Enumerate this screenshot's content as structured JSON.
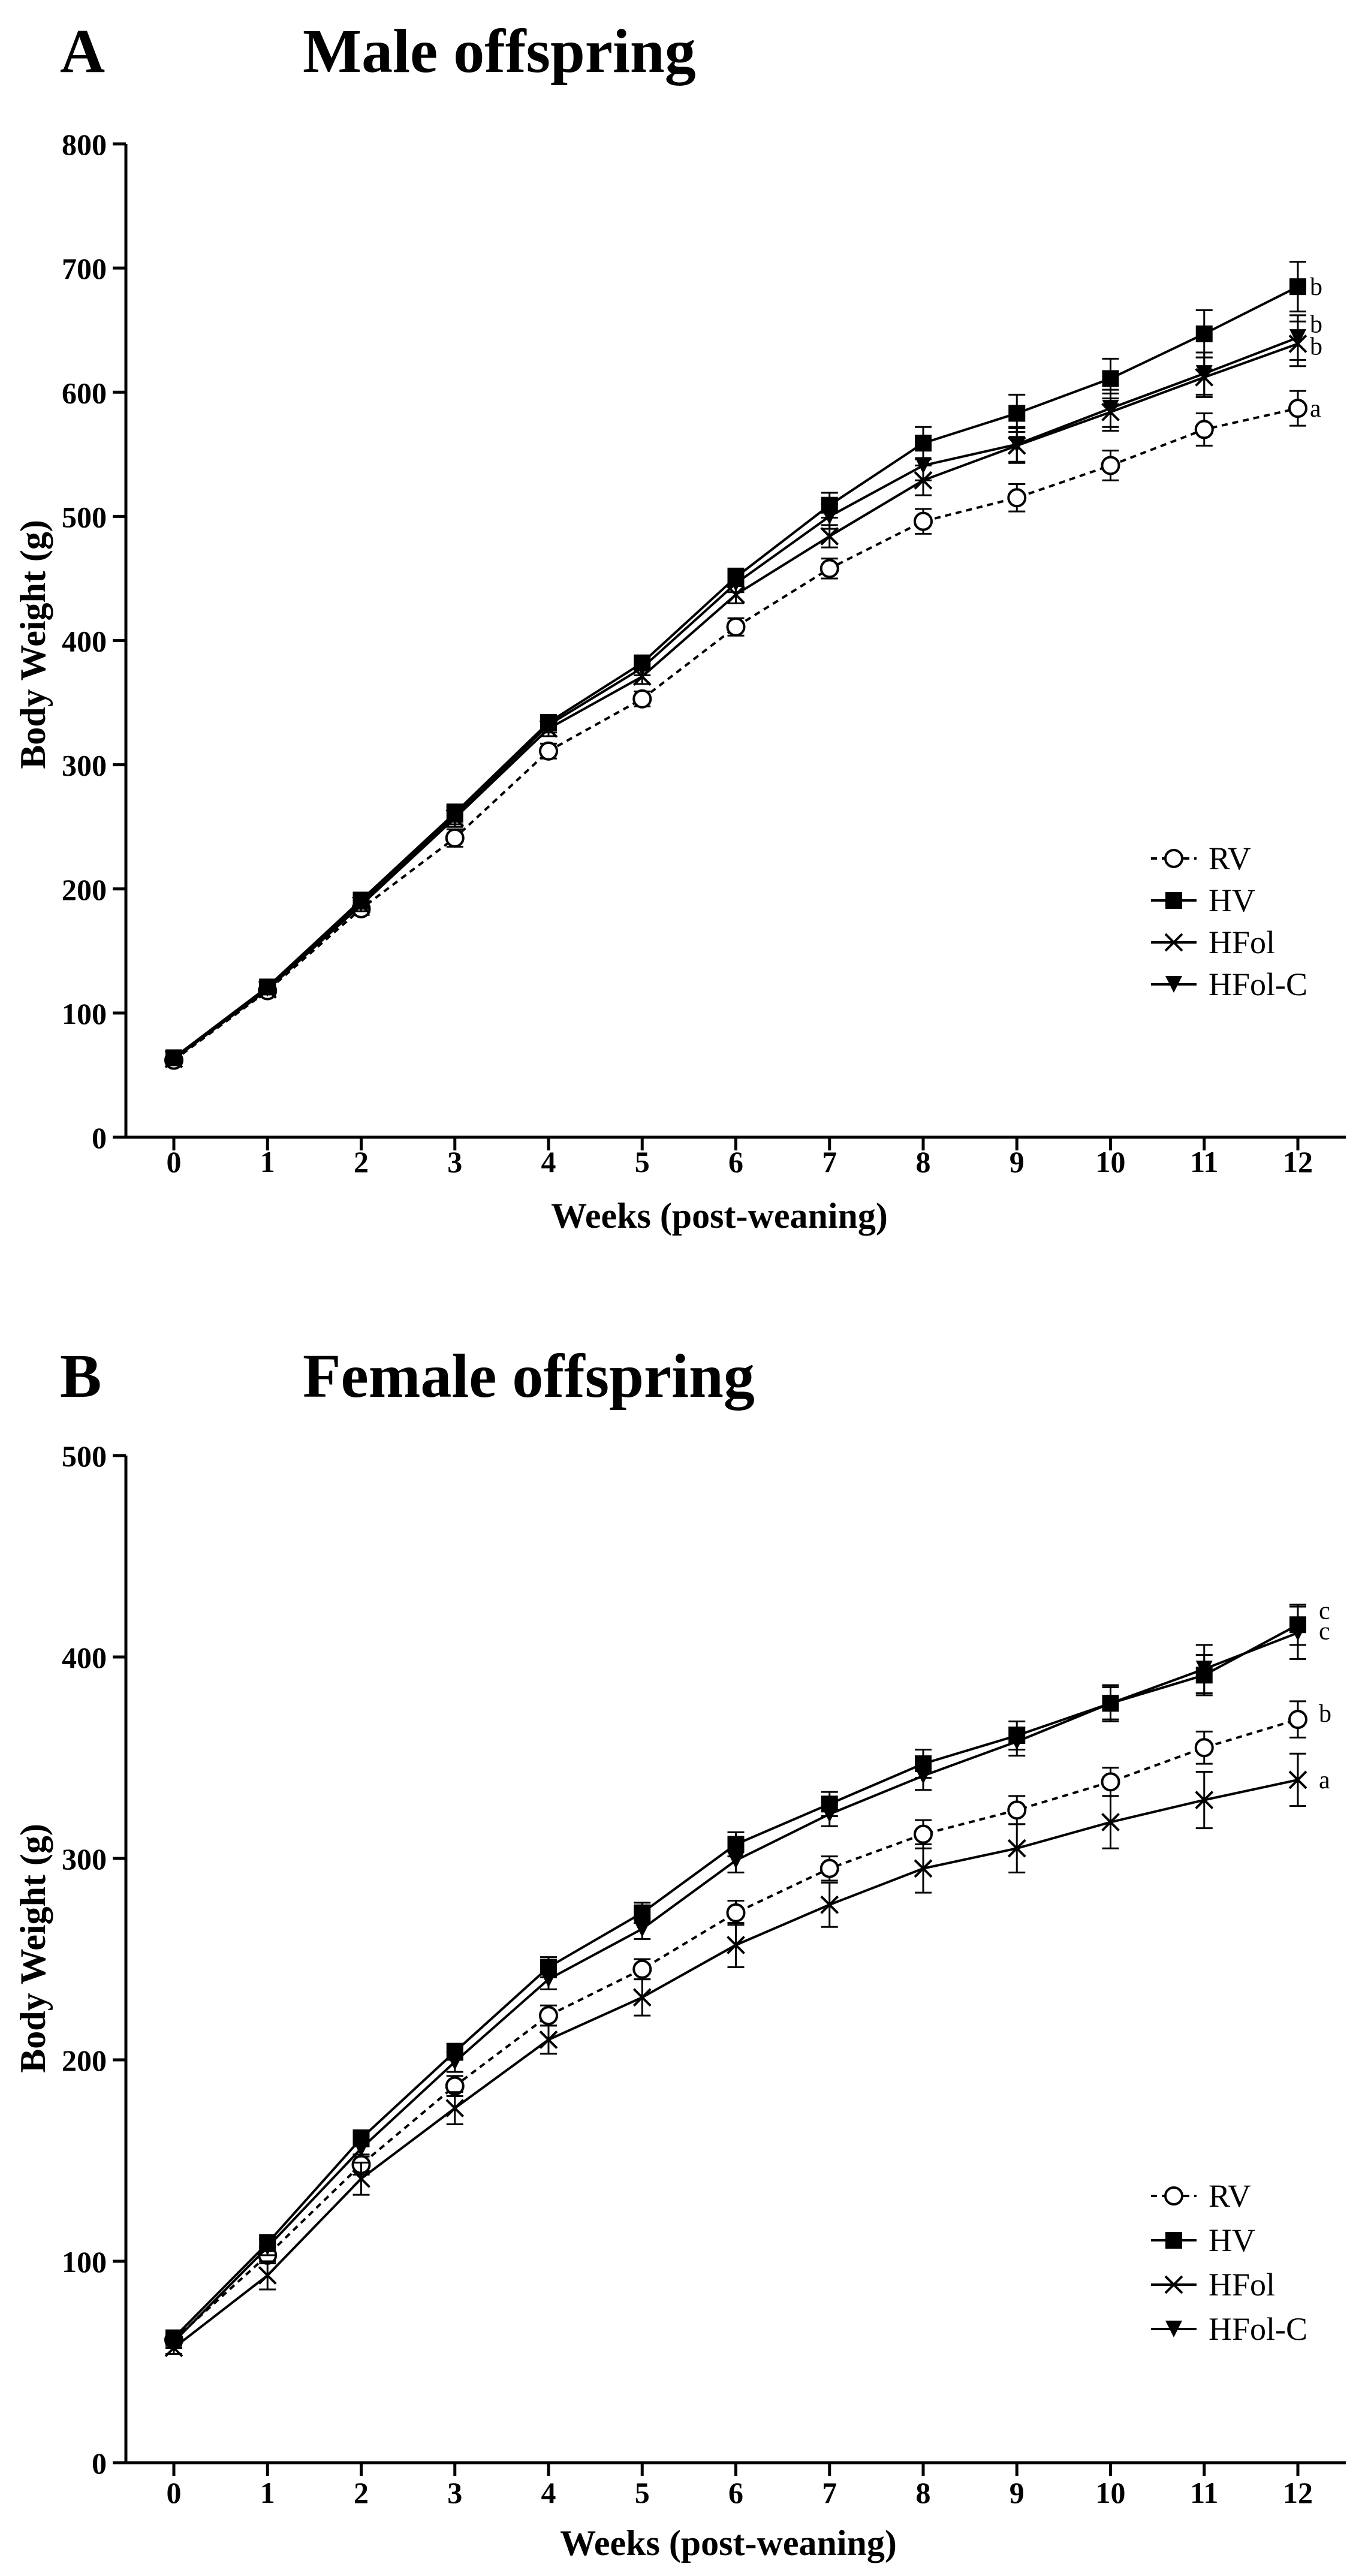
{
  "chart_data": [
    {
      "panel_label": "A",
      "type": "line",
      "title": "Male offspring",
      "xlabel": "Weeks (post-weaning)",
      "ylabel": "Body Weight (g)",
      "xlim": [
        0,
        12
      ],
      "ylim": [
        0,
        800
      ],
      "x": [
        0,
        1,
        2,
        3,
        4,
        5,
        6,
        7,
        8,
        9,
        10,
        11,
        12
      ],
      "x_ticks": [
        "0",
        "1",
        "2",
        "3",
        "4",
        "5",
        "6",
        "7",
        "8",
        "9",
        "10",
        "11",
        "12"
      ],
      "y_ticks": [
        "0",
        "100",
        "200",
        "300",
        "400",
        "500",
        "600",
        "700",
        "800"
      ],
      "legend_position": "bottom-right",
      "series": [
        {
          "name": "RV",
          "marker": "open-circle",
          "dashed": true,
          "values": [
            62,
            118,
            184,
            241,
            311,
            353,
            411,
            458,
            496,
            515,
            541,
            570,
            587
          ],
          "errors": [
            3,
            4,
            5,
            7,
            6,
            6,
            7,
            8,
            10,
            11,
            12,
            13,
            14
          ]
        },
        {
          "name": "HV",
          "marker": "filled-square",
          "dashed": false,
          "values": [
            64,
            121,
            191,
            261,
            334,
            382,
            451,
            509,
            559,
            583,
            611,
            647,
            685
          ],
          "errors": [
            3,
            4,
            5,
            7,
            6,
            6,
            7,
            10,
            13,
            15,
            16,
            19,
            20
          ]
        },
        {
          "name": "HFol",
          "marker": "cross",
          "dashed": false,
          "values": [
            63,
            119,
            187,
            257,
            329,
            371,
            437,
            484,
            529,
            557,
            584,
            612,
            639
          ],
          "errors": [
            3,
            4,
            5,
            7,
            6,
            6,
            7,
            9,
            12,
            14,
            15,
            16,
            18
          ]
        },
        {
          "name": "HFol-C",
          "marker": "filled-triangle-down",
          "dashed": false,
          "values": [
            64,
            120,
            189,
            259,
            332,
            378,
            446,
            500,
            541,
            558,
            587,
            615,
            644
          ],
          "errors": [
            3,
            4,
            5,
            7,
            6,
            6,
            7,
            10,
            12,
            14,
            15,
            17,
            18
          ]
        }
      ],
      "annotations": [
        {
          "text": "b",
          "x": 12,
          "y": 685
        },
        {
          "text": "b",
          "x": 12,
          "y": 655
        },
        {
          "text": "b",
          "x": 12,
          "y": 637
        },
        {
          "text": "a",
          "x": 12,
          "y": 587
        }
      ]
    },
    {
      "panel_label": "B",
      "type": "line",
      "title": "Female offspring",
      "xlabel": "Weeks (post-weaning)",
      "ylabel": "Body Weight (g)",
      "xlim": [
        0,
        12
      ],
      "ylim": [
        0,
        500
      ],
      "x": [
        0,
        1,
        2,
        3,
        4,
        5,
        6,
        7,
        8,
        9,
        10,
        11,
        12
      ],
      "x_ticks": [
        "0",
        "1",
        "2",
        "3",
        "4",
        "5",
        "6",
        "7",
        "8",
        "9",
        "10",
        "11",
        "12"
      ],
      "y_ticks": [
        "0",
        "100",
        "200",
        "300",
        "400",
        "500"
      ],
      "legend_position": "bottom-right",
      "series": [
        {
          "name": "RV",
          "marker": "open-circle",
          "dashed": true,
          "values": [
            61,
            103,
            148,
            187,
            222,
            245,
            273,
            295,
            312,
            324,
            338,
            355,
            369
          ],
          "errors": [
            3,
            4,
            5,
            5,
            5,
            5,
            6,
            6,
            7,
            7,
            7,
            8,
            9
          ]
        },
        {
          "name": "HV",
          "marker": "filled-square",
          "dashed": false,
          "values": [
            62,
            109,
            161,
            204,
            246,
            273,
            307,
            327,
            347,
            361,
            377,
            391,
            416
          ],
          "errors": [
            3,
            4,
            4,
            4,
            5,
            5,
            6,
            6,
            7,
            7,
            9,
            10,
            10
          ]
        },
        {
          "name": "HFol",
          "marker": "cross",
          "dashed": false,
          "values": [
            57,
            93,
            141,
            176,
            210,
            231,
            257,
            277,
            295,
            305,
            318,
            329,
            339
          ],
          "errors": [
            3,
            7,
            8,
            8,
            7,
            9,
            11,
            11,
            12,
            12,
            13,
            14,
            13
          ]
        },
        {
          "name": "HFol-C",
          "marker": "filled-triangle-down",
          "dashed": false,
          "values": [
            60,
            107,
            156,
            199,
            240,
            265,
            299,
            322,
            341,
            358,
            377,
            394,
            412
          ],
          "errors": [
            3,
            4,
            4,
            5,
            5,
            5,
            6,
            6,
            7,
            7,
            8,
            12,
            13
          ]
        }
      ],
      "annotations": [
        {
          "text": "c",
          "x": 12,
          "y": 423
        },
        {
          "text": "c",
          "x": 12,
          "y": 413
        },
        {
          "text": "b",
          "x": 12,
          "y": 372
        },
        {
          "text": "a",
          "x": 12,
          "y": 339
        }
      ]
    }
  ]
}
